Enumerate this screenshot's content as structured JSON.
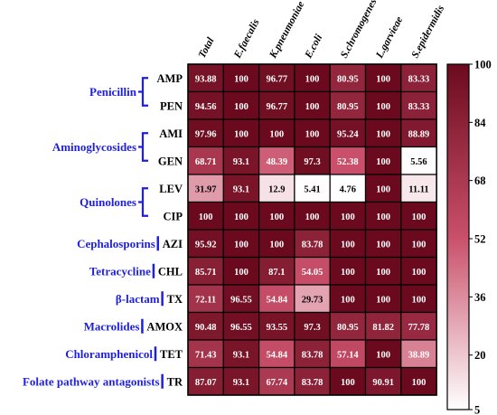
{
  "chart_data": {
    "type": "heatmap",
    "columns": [
      "Total",
      "E.faecalis",
      "K.pneumoniae",
      "E.coli",
      "S.chromogenes",
      "L.garvieae",
      "S.epidermidis"
    ],
    "rows": [
      "AMP",
      "PEN",
      "AMI",
      "GEN",
      "LEV",
      "CIP",
      "AZI",
      "CHL",
      "TX",
      "AMOX",
      "TET",
      "TR"
    ],
    "values": [
      [
        93.88,
        100,
        96.77,
        100,
        80.95,
        100,
        83.33
      ],
      [
        94.56,
        100,
        96.77,
        100,
        80.95,
        100,
        83.33
      ],
      [
        97.96,
        100,
        100,
        100,
        95.24,
        100,
        88.89
      ],
      [
        68.71,
        93.1,
        48.39,
        97.3,
        52.38,
        100,
        5.56
      ],
      [
        31.97,
        93.1,
        12.9,
        5.41,
        4.76,
        100,
        11.11
      ],
      [
        100,
        100,
        100,
        100,
        100,
        100,
        100
      ],
      [
        95.92,
        100,
        100,
        83.78,
        100,
        100,
        100
      ],
      [
        85.71,
        100,
        87.1,
        54.05,
        100,
        100,
        100
      ],
      [
        72.11,
        96.55,
        54.84,
        29.73,
        100,
        100,
        100
      ],
      [
        90.48,
        96.55,
        93.55,
        97.3,
        80.95,
        81.82,
        77.78
      ],
      [
        71.43,
        93.1,
        54.84,
        83.78,
        57.14,
        100,
        38.89
      ],
      [
        87.07,
        93.1,
        67.74,
        83.78,
        100,
        90.91,
        100
      ]
    ],
    "cell_labels": [
      [
        "93.88",
        "100",
        "96.77",
        "100",
        "80.95",
        "100",
        "83.33"
      ],
      [
        "94.56",
        "100",
        "96.77",
        "100",
        "80.95",
        "100",
        "83.33"
      ],
      [
        "97.96",
        "100",
        "100",
        "100",
        "95.24",
        "100",
        "88.89"
      ],
      [
        "68.71",
        "93.1",
        "48.39",
        "97.3",
        "52.38",
        "100",
        "5.56"
      ],
      [
        "31.97",
        "93.1",
        "12.9",
        "5.41",
        "4.76",
        "100",
        "11.11"
      ],
      [
        "100",
        "100",
        "100",
        "100",
        "100",
        "100",
        "100"
      ],
      [
        "95.92",
        "100",
        "100",
        "83.78",
        "100",
        "100",
        "100"
      ],
      [
        "85.71",
        "100",
        "87.1",
        "54.05",
        "100",
        "100",
        "100"
      ],
      [
        "72.11",
        "96.55",
        "54.84",
        "29.73",
        "100",
        "100",
        "100"
      ],
      [
        "90.48",
        "96.55",
        "93.55",
        "97.3",
        "80.95",
        "81.82",
        "77.78"
      ],
      [
        "71.43",
        "93.1",
        "54.84",
        "83.78",
        "57.14",
        "100",
        "38.89"
      ],
      [
        "87.07",
        "93.1",
        "67.74",
        "83.78",
        "100",
        "90.91",
        "100"
      ]
    ],
    "groups": [
      {
        "name": "Penicillin",
        "rows": [
          "AMP",
          "PEN"
        ]
      },
      {
        "name": "Aminoglycosides",
        "rows": [
          "AMI",
          "GEN"
        ]
      },
      {
        "name": "Quinolones",
        "rows": [
          "LEV",
          "CIP"
        ]
      },
      {
        "name": "Cephalosporins",
        "rows": [
          "AZI"
        ]
      },
      {
        "name": "Tetracycline",
        "rows": [
          "CHL"
        ]
      },
      {
        "name": "β-lactam",
        "rows": [
          "TX"
        ]
      },
      {
        "name": "Macrolides",
        "rows": [
          "AMOX"
        ]
      },
      {
        "name": "Chloramphenicol",
        "rows": [
          "TET"
        ]
      },
      {
        "name": "Folate pathway antagonists",
        "rows": [
          "TR"
        ]
      }
    ],
    "colorbar": {
      "min": 5,
      "max": 100,
      "ticks": [
        "5",
        "20",
        "36",
        "52",
        "68",
        "84",
        "100"
      ],
      "tick_values": [
        5,
        20,
        36,
        52,
        68,
        84,
        100
      ],
      "low_color": "#ffffff",
      "mid_color": "#c94f6a",
      "high_color": "#6b0a1e"
    },
    "group_label_color": "#1f1fe0",
    "grid_line_color": "#000000"
  }
}
